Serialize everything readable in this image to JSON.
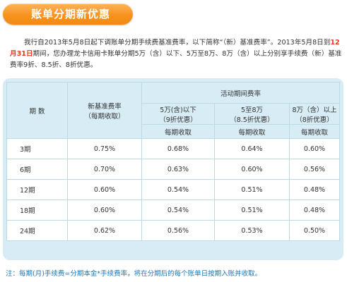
{
  "title": "账单分期新优惠",
  "intro": {
    "part1": "我行自2013年5月8日起下调账单分期手续费基准费率，以下简称“（新）基准费率”。2013年5月8日到",
    "highlight": "12月31日",
    "part2": "期间，您办理龙卡信用卡账单分期5万（含）以下、5万至8万、8万（含）以上分别享手续费（新）基准费率9折、8.5折、8折优惠。"
  },
  "table": {
    "col_period": "期 数",
    "col_base": "新基准费率\n（每期收取）",
    "col_activity": "活动期间费率",
    "tiers": [
      {
        "label": "5万(含)以下\n（9折优惠）",
        "sub": "每期收取"
      },
      {
        "label": "5至8万\n（8.5折优惠）",
        "sub": "每期收取"
      },
      {
        "label": "8万（含）以上\n（8折优惠）",
        "sub": "每期收取"
      }
    ],
    "rows": [
      {
        "period": "3期",
        "base": "0.75%",
        "t1": "0.68%",
        "t2": "0.64%",
        "t3": "0.60%"
      },
      {
        "period": "6期",
        "base": "0.70%",
        "t1": "0.63%",
        "t2": "0.60%",
        "t3": "0.56%"
      },
      {
        "period": "12期",
        "base": "0.60%",
        "t1": "0.54%",
        "t2": "0.51%",
        "t3": "0.48%"
      },
      {
        "period": "18期",
        "base": "0.60%",
        "t1": "0.54%",
        "t2": "0.51%",
        "t3": "0.48%"
      },
      {
        "period": "24期",
        "base": "0.62%",
        "t1": "0.56%",
        "t2": "0.53%",
        "t3": "0.50%"
      }
    ]
  },
  "note": "注：每期(月)手续费=分期本金*手续费率，将在分期后的每个账单日按期入账并收取。",
  "colors": {
    "title_bg": "#f7931e",
    "highlight": "#e8381c",
    "table_bg": "#d7ecf5",
    "note": "#1a78b4"
  }
}
